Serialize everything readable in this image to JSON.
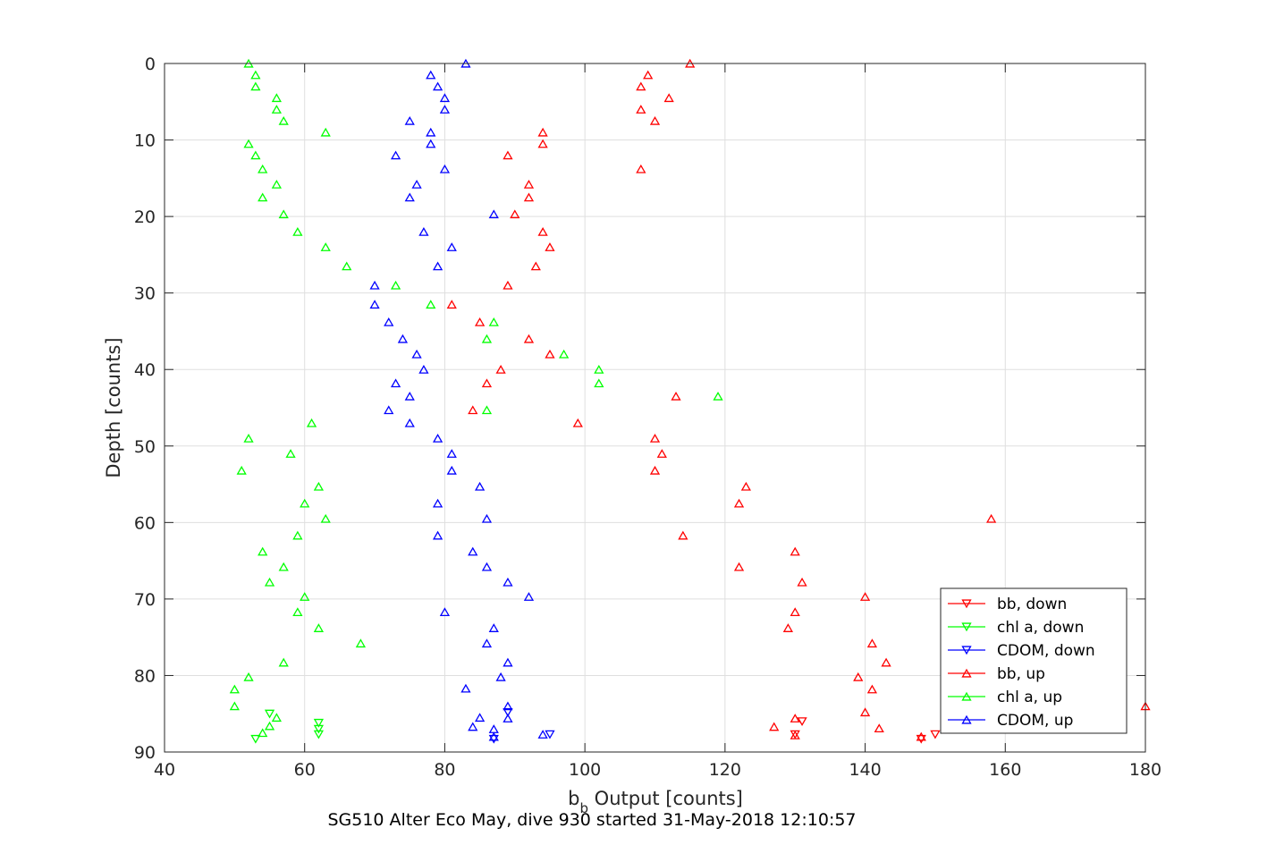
{
  "chart_data": {
    "type": "scatter",
    "title": "SG510 Alter Eco May, dive 930 started 31-May-2018 12:10:57",
    "xlabel_main": "b",
    "xlabel_sub": "b",
    "xlabel_rest": " Output [counts]",
    "ylabel": "Depth [counts]",
    "xlim": [
      40,
      180
    ],
    "ylim": [
      0,
      90
    ],
    "y_reversed": true,
    "grid": true,
    "legend_position": "bottom-right",
    "xticks": [
      "40",
      "60",
      "80",
      "100",
      "120",
      "140",
      "160",
      "180"
    ],
    "yticks": [
      "0",
      "10",
      "20",
      "30",
      "40",
      "50",
      "60",
      "70",
      "80",
      "90"
    ],
    "series": [
      {
        "name": "bb, down",
        "color": "#ff0000",
        "marker": "triangle-down",
        "points": [
          [
            131,
            86
          ],
          [
            130,
            87.7
          ],
          [
            148,
            88.3
          ],
          [
            150,
            87.7
          ]
        ]
      },
      {
        "name": "chl a, down",
        "color": "#00ff00",
        "marker": "triangle-down",
        "points": [
          [
            55,
            85
          ],
          [
            62,
            86.2
          ],
          [
            62,
            87
          ],
          [
            62,
            87.7
          ],
          [
            53,
            88.3
          ]
        ]
      },
      {
        "name": "CDOM, down",
        "color": "#0000ff",
        "marker": "triangle-down",
        "points": [
          [
            89,
            84.8
          ],
          [
            95,
            87.7
          ],
          [
            87,
            88.3
          ]
        ]
      },
      {
        "name": "bb, up",
        "color": "#ff0000",
        "marker": "triangle-up",
        "points": [
          [
            115,
            0
          ],
          [
            109,
            1.5
          ],
          [
            108,
            3
          ],
          [
            112,
            4.5
          ],
          [
            108,
            6
          ],
          [
            110,
            7.5
          ],
          [
            94,
            9
          ],
          [
            94,
            10.5
          ],
          [
            89,
            12
          ],
          [
            108,
            13.8
          ],
          [
            92,
            15.8
          ],
          [
            92,
            17.5
          ],
          [
            90,
            19.7
          ],
          [
            94,
            22
          ],
          [
            95,
            24
          ],
          [
            93,
            26.5
          ],
          [
            89,
            29
          ],
          [
            81,
            31.5
          ],
          [
            85,
            33.8
          ],
          [
            92,
            36
          ],
          [
            95,
            38
          ],
          [
            88,
            40
          ],
          [
            86,
            41.8
          ],
          [
            113,
            43.5
          ],
          [
            84,
            45.3
          ],
          [
            99,
            47
          ],
          [
            110,
            49
          ],
          [
            111,
            51
          ],
          [
            110,
            53.2
          ],
          [
            123,
            55.3
          ],
          [
            122,
            57.5
          ],
          [
            158,
            59.5
          ],
          [
            114,
            61.7
          ],
          [
            130,
            63.8
          ],
          [
            122,
            65.8
          ],
          [
            131,
            67.8
          ],
          [
            140,
            69.7
          ],
          [
            130,
            71.7
          ],
          [
            129,
            73.8
          ],
          [
            141,
            75.8
          ],
          [
            143,
            78.3
          ],
          [
            139,
            80.2
          ],
          [
            141,
            81.8
          ],
          [
            180,
            84
          ],
          [
            140,
            84.8
          ],
          [
            130,
            85.6
          ],
          [
            127,
            86.7
          ],
          [
            142,
            86.9
          ],
          [
            130,
            87.8
          ],
          [
            148,
            88
          ]
        ]
      },
      {
        "name": "chl a, up",
        "color": "#00ff00",
        "marker": "triangle-up",
        "points": [
          [
            52,
            0
          ],
          [
            53,
            1.5
          ],
          [
            53,
            3
          ],
          [
            56,
            4.5
          ],
          [
            56,
            6
          ],
          [
            57,
            7.5
          ],
          [
            63,
            9
          ],
          [
            52,
            10.5
          ],
          [
            53,
            12
          ],
          [
            54,
            13.8
          ],
          [
            56,
            15.8
          ],
          [
            54,
            17.5
          ],
          [
            57,
            19.7
          ],
          [
            59,
            22
          ],
          [
            63,
            24
          ],
          [
            66,
            26.5
          ],
          [
            73,
            29
          ],
          [
            78,
            31.5
          ],
          [
            87,
            33.8
          ],
          [
            86,
            36
          ],
          [
            97,
            38
          ],
          [
            102,
            40
          ],
          [
            102,
            41.8
          ],
          [
            119,
            43.5
          ],
          [
            86,
            45.3
          ],
          [
            61,
            47
          ],
          [
            52,
            49
          ],
          [
            58,
            51
          ],
          [
            51,
            53.2
          ],
          [
            62,
            55.3
          ],
          [
            60,
            57.5
          ],
          [
            63,
            59.5
          ],
          [
            59,
            61.7
          ],
          [
            54,
            63.8
          ],
          [
            57,
            65.8
          ],
          [
            55,
            67.8
          ],
          [
            60,
            69.7
          ],
          [
            59,
            71.7
          ],
          [
            62,
            73.8
          ],
          [
            68,
            75.8
          ],
          [
            57,
            78.3
          ],
          [
            52,
            80.2
          ],
          [
            50,
            81.8
          ],
          [
            50,
            84
          ],
          [
            56,
            85.5
          ],
          [
            55,
            86.6
          ],
          [
            54,
            87.5
          ]
        ]
      },
      {
        "name": "CDOM, up",
        "color": "#0000ff",
        "marker": "triangle-up",
        "points": [
          [
            83,
            0
          ],
          [
            78,
            1.5
          ],
          [
            79,
            3
          ],
          [
            80,
            4.5
          ],
          [
            80,
            6
          ],
          [
            75,
            7.5
          ],
          [
            78,
            9
          ],
          [
            78,
            10.5
          ],
          [
            73,
            12
          ],
          [
            80,
            13.8
          ],
          [
            76,
            15.8
          ],
          [
            75,
            17.5
          ],
          [
            87,
            19.7
          ],
          [
            77,
            22
          ],
          [
            81,
            24
          ],
          [
            79,
            26.5
          ],
          [
            70,
            29
          ],
          [
            70,
            31.5
          ],
          [
            72,
            33.8
          ],
          [
            74,
            36
          ],
          [
            76,
            38
          ],
          [
            77,
            40
          ],
          [
            73,
            41.8
          ],
          [
            75,
            43.5
          ],
          [
            72,
            45.3
          ],
          [
            75,
            47
          ],
          [
            79,
            49
          ],
          [
            81,
            51
          ],
          [
            81,
            53.2
          ],
          [
            85,
            55.3
          ],
          [
            79,
            57.5
          ],
          [
            86,
            59.5
          ],
          [
            79,
            61.7
          ],
          [
            84,
            63.8
          ],
          [
            86,
            65.8
          ],
          [
            89,
            67.8
          ],
          [
            92,
            69.7
          ],
          [
            80,
            71.7
          ],
          [
            87,
            73.8
          ],
          [
            86,
            75.8
          ],
          [
            89,
            78.3
          ],
          [
            88,
            80.2
          ],
          [
            83,
            81.7
          ],
          [
            89,
            84
          ],
          [
            89,
            85.6
          ],
          [
            85,
            85.5
          ],
          [
            84,
            86.7
          ],
          [
            87,
            87
          ],
          [
            94,
            87.7
          ],
          [
            87,
            88
          ]
        ]
      }
    ]
  }
}
